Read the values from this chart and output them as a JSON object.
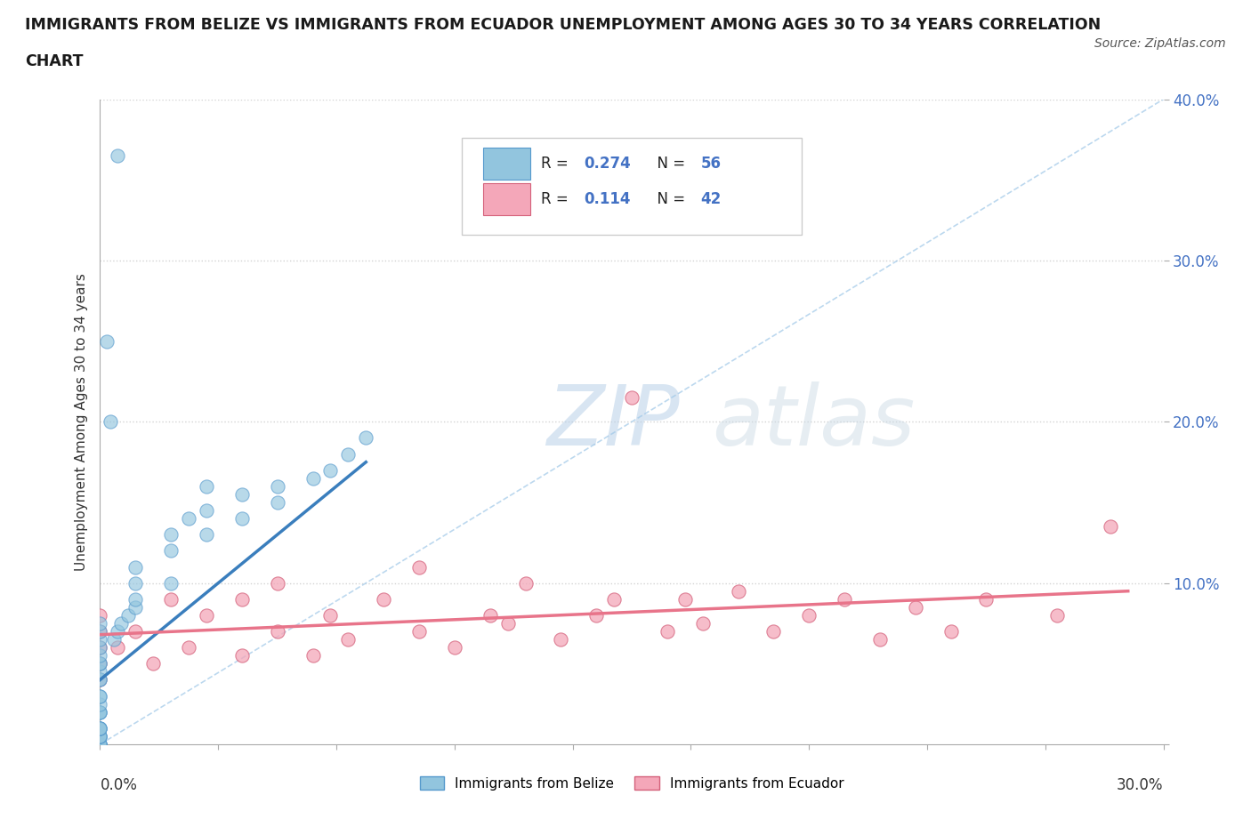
{
  "title": "IMMIGRANTS FROM BELIZE VS IMMIGRANTS FROM ECUADOR UNEMPLOYMENT AMONG AGES 30 TO 34 YEARS CORRELATION\nCHART",
  "source": "Source: ZipAtlas.com",
  "ylabel": "Unemployment Among Ages 30 to 34 years",
  "xlim": [
    0.0,
    0.3
  ],
  "ylim": [
    0.0,
    0.4
  ],
  "belize_R": 0.274,
  "belize_N": 56,
  "ecuador_R": 0.114,
  "ecuador_N": 42,
  "belize_color": "#92C5DE",
  "ecuador_color": "#F4A7B9",
  "belize_line_color": "#3A7EBD",
  "ecuador_line_color": "#E8748A",
  "belize_edge_color": "#5599CC",
  "ecuador_edge_color": "#D4607A",
  "watermark_color": "#D0E4F2",
  "belize_x": [
    0.0,
    0.0,
    0.0,
    0.0,
    0.0,
    0.0,
    0.0,
    0.0,
    0.0,
    0.0,
    0.0,
    0.0,
    0.0,
    0.0,
    0.0,
    0.0,
    0.0,
    0.0,
    0.0,
    0.0,
    0.0,
    0.0,
    0.0,
    0.0,
    0.0,
    0.0,
    0.0,
    0.0,
    0.0,
    0.0,
    0.004,
    0.005,
    0.006,
    0.008,
    0.01,
    0.01,
    0.01,
    0.01,
    0.02,
    0.02,
    0.02,
    0.025,
    0.03,
    0.03,
    0.03,
    0.04,
    0.04,
    0.05,
    0.05,
    0.06,
    0.065,
    0.07,
    0.075,
    0.005,
    0.002,
    0.003
  ],
  "belize_y": [
    0.0,
    0.0,
    0.0,
    0.0,
    0.0,
    0.0,
    0.005,
    0.005,
    0.005,
    0.005,
    0.01,
    0.01,
    0.01,
    0.01,
    0.02,
    0.02,
    0.02,
    0.025,
    0.03,
    0.03,
    0.04,
    0.04,
    0.045,
    0.05,
    0.05,
    0.055,
    0.06,
    0.065,
    0.07,
    0.075,
    0.065,
    0.07,
    0.075,
    0.08,
    0.085,
    0.09,
    0.1,
    0.11,
    0.1,
    0.12,
    0.13,
    0.14,
    0.13,
    0.145,
    0.16,
    0.14,
    0.155,
    0.15,
    0.16,
    0.165,
    0.17,
    0.18,
    0.19,
    0.365,
    0.25,
    0.2
  ],
  "ecuador_x": [
    0.0,
    0.0,
    0.0,
    0.0,
    0.0,
    0.005,
    0.01,
    0.015,
    0.02,
    0.025,
    0.03,
    0.04,
    0.04,
    0.05,
    0.05,
    0.06,
    0.065,
    0.07,
    0.08,
    0.09,
    0.09,
    0.1,
    0.11,
    0.115,
    0.12,
    0.13,
    0.14,
    0.145,
    0.15,
    0.16,
    0.165,
    0.17,
    0.18,
    0.19,
    0.2,
    0.21,
    0.22,
    0.23,
    0.24,
    0.25,
    0.27,
    0.285
  ],
  "ecuador_y": [
    0.05,
    0.06,
    0.07,
    0.04,
    0.08,
    0.06,
    0.07,
    0.05,
    0.09,
    0.06,
    0.08,
    0.055,
    0.09,
    0.07,
    0.1,
    0.055,
    0.08,
    0.065,
    0.09,
    0.07,
    0.11,
    0.06,
    0.08,
    0.075,
    0.1,
    0.065,
    0.08,
    0.09,
    0.215,
    0.07,
    0.09,
    0.075,
    0.095,
    0.07,
    0.08,
    0.09,
    0.065,
    0.085,
    0.07,
    0.09,
    0.08,
    0.135
  ],
  "belize_line_x0": 0.0,
  "belize_line_y0": 0.04,
  "belize_line_x1": 0.075,
  "belize_line_y1": 0.175,
  "ecuador_line_x0": 0.0,
  "ecuador_line_y0": 0.068,
  "ecuador_line_x1": 0.29,
  "ecuador_line_y1": 0.095
}
